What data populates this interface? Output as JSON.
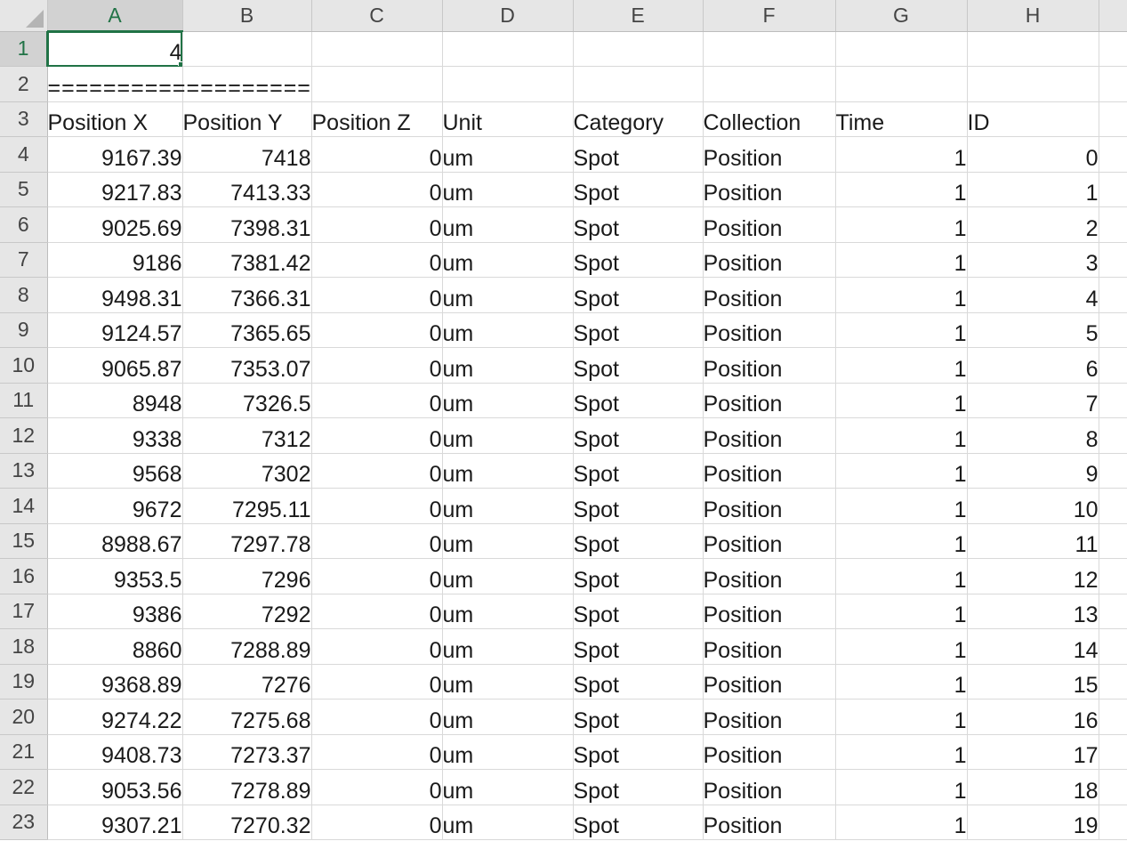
{
  "columns": [
    "A",
    "B",
    "C",
    "D",
    "E",
    "F",
    "G",
    "H"
  ],
  "active_cell": "A1",
  "rows": [
    {
      "row": "1",
      "cells": [
        "4",
        "",
        "",
        "",
        "",
        "",
        "",
        ""
      ]
    },
    {
      "row": "2",
      "cells": [
        "===================",
        "",
        "",
        "",
        "",
        "",
        "",
        ""
      ]
    },
    {
      "row": "3",
      "cells": [
        "Position X",
        "Position Y",
        "Position Z",
        "Unit",
        "Category",
        "Collection",
        "Time",
        "ID"
      ]
    },
    {
      "row": "4",
      "cells": [
        "9167.39",
        "7418",
        "0",
        "um",
        "Spot",
        "Position",
        "1",
        "0"
      ]
    },
    {
      "row": "5",
      "cells": [
        "9217.83",
        "7413.33",
        "0",
        "um",
        "Spot",
        "Position",
        "1",
        "1"
      ]
    },
    {
      "row": "6",
      "cells": [
        "9025.69",
        "7398.31",
        "0",
        "um",
        "Spot",
        "Position",
        "1",
        "2"
      ]
    },
    {
      "row": "7",
      "cells": [
        "9186",
        "7381.42",
        "0",
        "um",
        "Spot",
        "Position",
        "1",
        "3"
      ]
    },
    {
      "row": "8",
      "cells": [
        "9498.31",
        "7366.31",
        "0",
        "um",
        "Spot",
        "Position",
        "1",
        "4"
      ]
    },
    {
      "row": "9",
      "cells": [
        "9124.57",
        "7365.65",
        "0",
        "um",
        "Spot",
        "Position",
        "1",
        "5"
      ]
    },
    {
      "row": "10",
      "cells": [
        "9065.87",
        "7353.07",
        "0",
        "um",
        "Spot",
        "Position",
        "1",
        "6"
      ]
    },
    {
      "row": "11",
      "cells": [
        "8948",
        "7326.5",
        "0",
        "um",
        "Spot",
        "Position",
        "1",
        "7"
      ]
    },
    {
      "row": "12",
      "cells": [
        "9338",
        "7312",
        "0",
        "um",
        "Spot",
        "Position",
        "1",
        "8"
      ]
    },
    {
      "row": "13",
      "cells": [
        "9568",
        "7302",
        "0",
        "um",
        "Spot",
        "Position",
        "1",
        "9"
      ]
    },
    {
      "row": "14",
      "cells": [
        "9672",
        "7295.11",
        "0",
        "um",
        "Spot",
        "Position",
        "1",
        "10"
      ]
    },
    {
      "row": "15",
      "cells": [
        "8988.67",
        "7297.78",
        "0",
        "um",
        "Spot",
        "Position",
        "1",
        "11"
      ]
    },
    {
      "row": "16",
      "cells": [
        "9353.5",
        "7296",
        "0",
        "um",
        "Spot",
        "Position",
        "1",
        "12"
      ]
    },
    {
      "row": "17",
      "cells": [
        "9386",
        "7292",
        "0",
        "um",
        "Spot",
        "Position",
        "1",
        "13"
      ]
    },
    {
      "row": "18",
      "cells": [
        "8860",
        "7288.89",
        "0",
        "um",
        "Spot",
        "Position",
        "1",
        "14"
      ]
    },
    {
      "row": "19",
      "cells": [
        "9368.89",
        "7276",
        "0",
        "um",
        "Spot",
        "Position",
        "1",
        "15"
      ]
    },
    {
      "row": "20",
      "cells": [
        "9274.22",
        "7275.68",
        "0",
        "um",
        "Spot",
        "Position",
        "1",
        "16"
      ]
    },
    {
      "row": "21",
      "cells": [
        "9408.73",
        "7273.37",
        "0",
        "um",
        "Spot",
        "Position",
        "1",
        "17"
      ]
    },
    {
      "row": "22",
      "cells": [
        "9053.56",
        "7278.89",
        "0",
        "um",
        "Spot",
        "Position",
        "1",
        "18"
      ]
    },
    {
      "row": "23",
      "cells": [
        "9307.21",
        "7270.32",
        "0",
        "um",
        "Spot",
        "Position",
        "1",
        "19"
      ]
    }
  ],
  "colors": {
    "accent": "#217346",
    "header_bg": "#e6e6e6",
    "gridline": "#d9d9d9"
  }
}
